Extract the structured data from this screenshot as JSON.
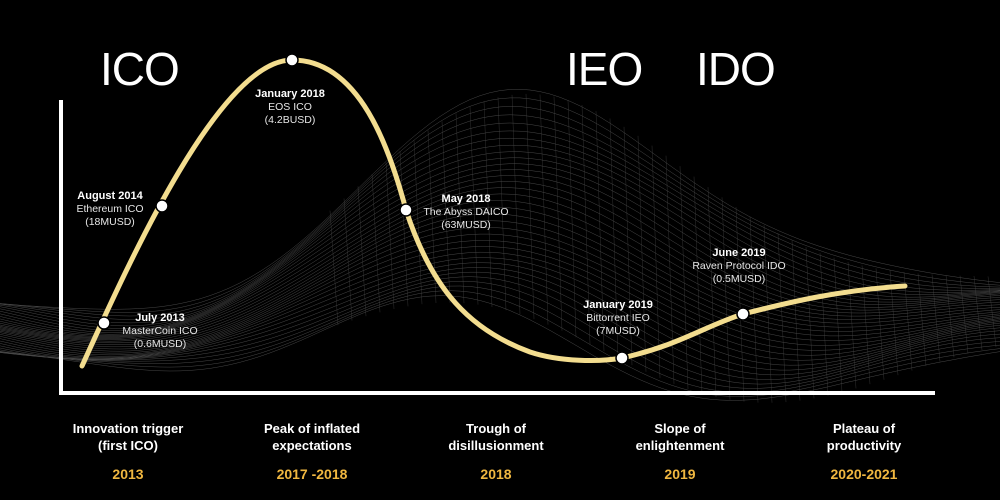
{
  "eras": [
    "ICO",
    "IEO",
    "IDO"
  ],
  "events": [
    {
      "date": "July 2013",
      "name": "MasterCoin ICO",
      "amount": "(0.6MUSD)"
    },
    {
      "date": "August 2014",
      "name": "Ethereum ICO",
      "amount": "(18MUSD)"
    },
    {
      "date": "January 2018",
      "name": "EOS ICO",
      "amount": "(4.2BUSD)"
    },
    {
      "date": "May 2018",
      "name": "The Abyss DAICO",
      "amount": "(63MUSD)"
    },
    {
      "date": "January 2019",
      "name": "Bittorrent IEO",
      "amount": "(7MUSD)"
    },
    {
      "date": "June 2019",
      "name": "Raven Protocol IDO",
      "amount": "(0.5MUSD)"
    }
  ],
  "phases": [
    {
      "line1": "Innovation trigger",
      "line2": "(first ICO)",
      "year": "2013"
    },
    {
      "line1": "Peak of inflated",
      "line2": "expectations",
      "year": "2017 -2018"
    },
    {
      "line1": "Trough of",
      "line2": "disillusionment",
      "year": "2018"
    },
    {
      "line1": "Slope of",
      "line2": "enlightenment",
      "year": "2019"
    },
    {
      "line1": "Plateau of",
      "line2": "productivity",
      "year": "2020-2021"
    }
  ],
  "colors": {
    "background": "#000000",
    "curve": "#f3dd8f",
    "year": "#f0b740",
    "mesh": "#ffffff"
  }
}
